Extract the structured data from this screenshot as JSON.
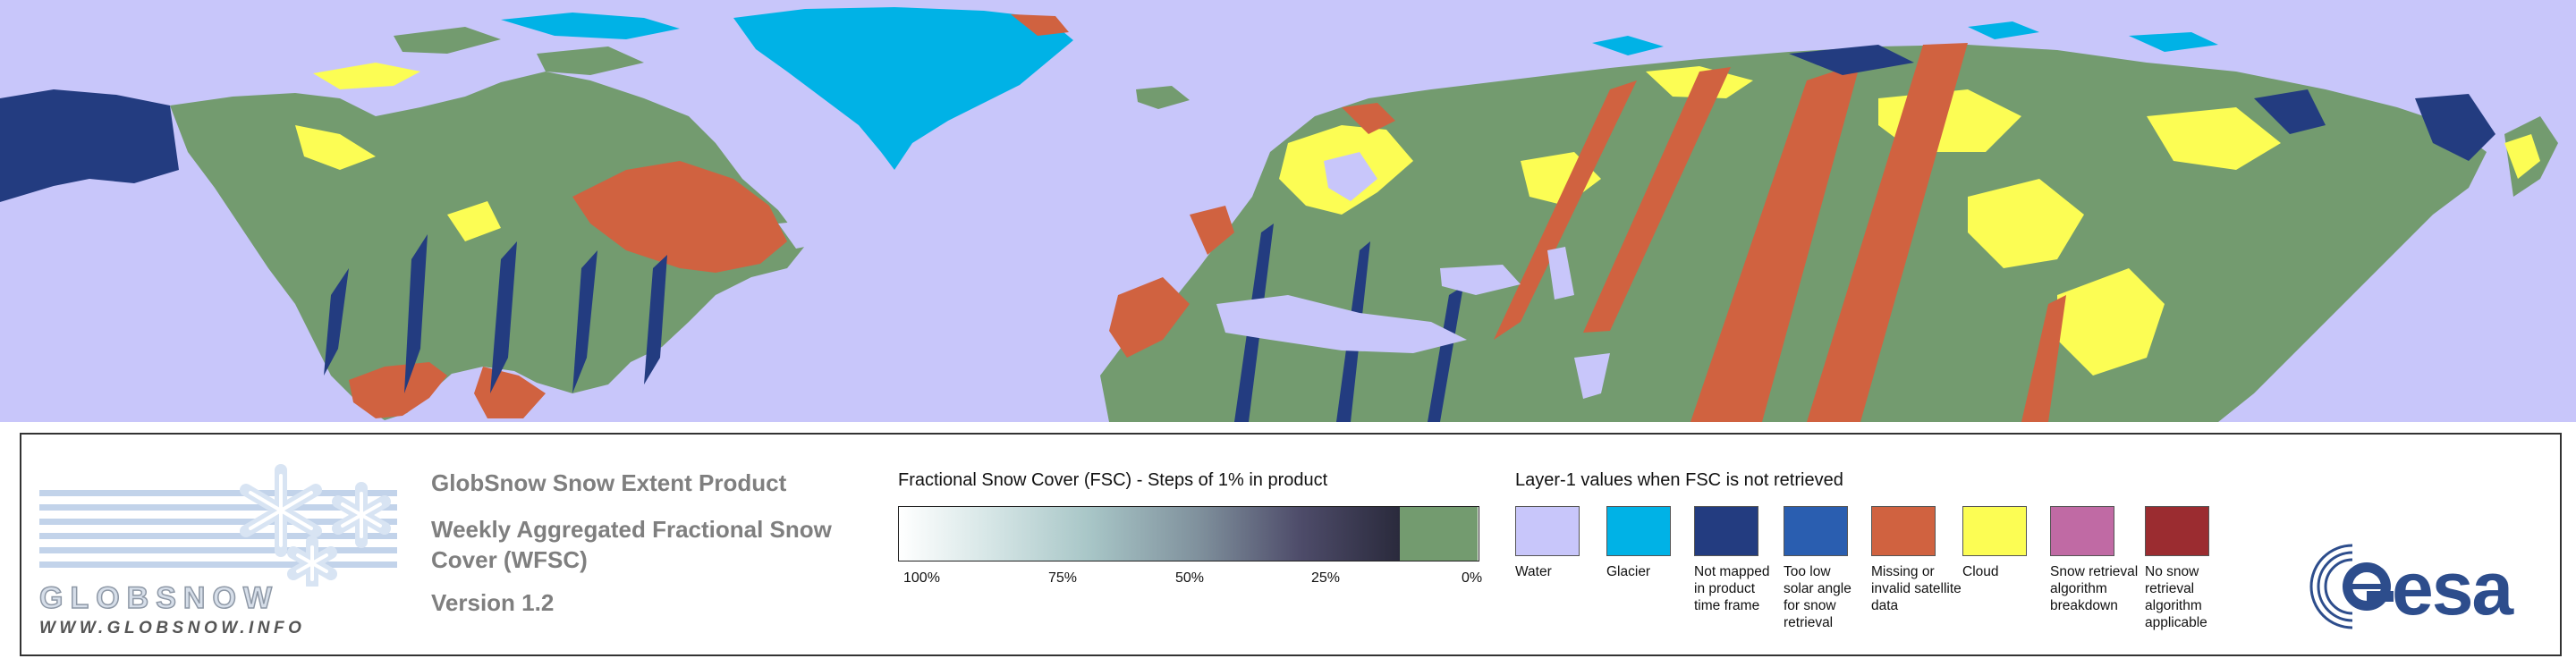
{
  "colors": {
    "water": "#c8c6fa",
    "glacier": "#00b2e6",
    "not_mapped": "#233c80",
    "low_sun": "#2a5eb0",
    "missing": "#d06240",
    "cloud": "#fcfd54",
    "breakdown": "#c06aa4",
    "no_retrieval": "#9b2c30",
    "snow_free": "#739b6f",
    "panel_border": "#333333",
    "title_gray": "#7f7f7f",
    "esa_blue": "#2d4d8c"
  },
  "logo": {
    "wordmark": "GLOBSNOW",
    "url": "WWW.GLOBSNOW.INFO"
  },
  "product": {
    "line1": "GlobSnow Snow Extent Product",
    "line2": "Weekly Aggregated Fractional Snow",
    "line3": "Cover (WFSC)",
    "version": "Version 1.2"
  },
  "fsc_scale": {
    "title": "Fractional Snow Cover (FSC) - Steps of 1% in product",
    "ticks": [
      "100%",
      "75%",
      "50%",
      "25%",
      "0%"
    ]
  },
  "layer1": {
    "title": "Layer-1 values when FSC is not retrieved",
    "items": [
      {
        "label": "Water",
        "color": "#c8c6fa"
      },
      {
        "label": "Glacier",
        "color": "#00b2e6"
      },
      {
        "label": "Not mapped in product time frame",
        "color": "#233c80"
      },
      {
        "label": "Too low solar angle for snow retrieval",
        "color": "#2a5eb0"
      },
      {
        "label": "Missing or invalid satellite data",
        "color": "#d06240"
      },
      {
        "label": "Cloud",
        "color": "#fcfd54"
      },
      {
        "label": "Snow retrieval algorithm breakdown",
        "color": "#c06aa4"
      },
      {
        "label": "No snow retrieval algorithm applicable",
        "color": "#9b2c30"
      }
    ]
  },
  "esa_logo": "esa"
}
